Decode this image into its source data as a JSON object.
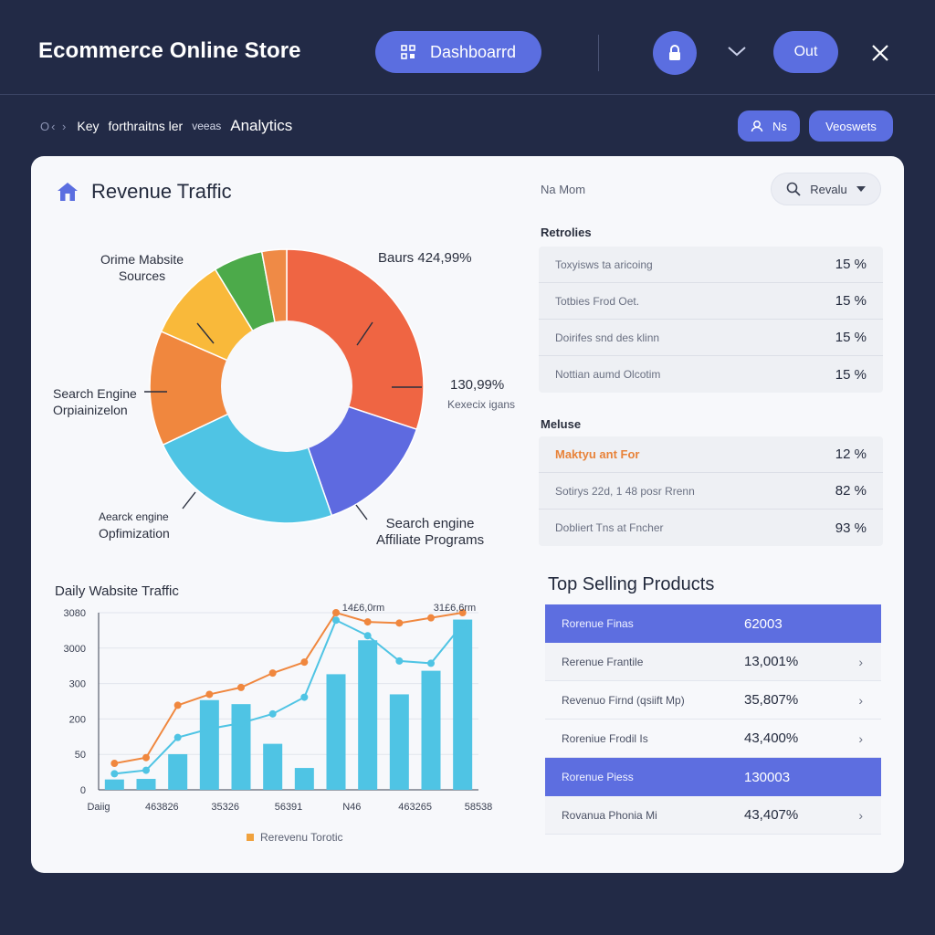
{
  "header": {
    "title": "Ecommerce Online  Store",
    "dashboard_label": "Dashboarrd",
    "out_label": "Out"
  },
  "subbar": {
    "crumb_prefix": "O‹ ›",
    "crumb_key": "Key",
    "crumb_middle": "forthraitns ler",
    "crumb_small": "veeas",
    "crumb_last": "Analytics",
    "ns_label": "Ns",
    "views_label": "Veoswets"
  },
  "card": {
    "title": "Revenue Traffic",
    "name_label": "Na Mom",
    "search_label": "Revalu"
  },
  "pie": {
    "labels": {
      "top_left_1": "Orime Mabsite",
      "top_left_2": "Sources",
      "top_right": "Baurs 424,99%",
      "right_1": "130,99%",
      "right_2": "Kexecix igans",
      "left_1": "Search Engine",
      "left_2": "Orpiainizelon",
      "bottom_left_1": "Aearck engine",
      "bottom_left_2": "Opfimization",
      "bottom_right_1": "Search engine",
      "bottom_right_2": "Affiliate Programs"
    },
    "slices": [
      {
        "value": 31,
        "color": "#ef6543"
      },
      {
        "value": 15,
        "color": "#5e6ae0"
      },
      {
        "value": 24,
        "color": "#4fc4e4"
      },
      {
        "value": 14,
        "color": "#f0873e"
      },
      {
        "value": 10,
        "color": "#f9b93a"
      },
      {
        "value": 6,
        "color": "#4caa4a"
      },
      {
        "value": 3,
        "color": "#ef8a46"
      }
    ]
  },
  "retrotes": {
    "heading": "Retrolies",
    "rows": [
      {
        "label": "Toxyisws ta aricoing",
        "value": "15 %"
      },
      {
        "label": "Totbies Frod Oet.",
        "value": "15 %"
      },
      {
        "label": "Doirifes snd des klinn",
        "value": "15 %"
      },
      {
        "label": "Nottian aumd Olcotim",
        "value": "15 %"
      }
    ]
  },
  "meluse": {
    "heading": "Meluse",
    "rows": [
      {
        "label": "Maktyu ant For",
        "value": "12 %"
      },
      {
        "label": "Sotirys 22d, 1 48 posr Rrenn",
        "value": "82 %"
      },
      {
        "label": "Dobliert Tns at Fncher",
        "value": "93 %"
      }
    ]
  },
  "top_selling": {
    "title": "Top Selling Products",
    "rows": [
      {
        "label": "Rorenue Finas",
        "value": "62003",
        "highlight": true
      },
      {
        "label": "Rerenue Frantile",
        "value": "13,001%",
        "highlight": false
      },
      {
        "label": "Revenuo Firnd (qsiift Mp)",
        "value": "35,807%",
        "highlight": false
      },
      {
        "label": "Roreniue Frodil Is",
        "value": "43,400%",
        "highlight": false
      },
      {
        "label": "Rorenue Piess",
        "value": "130003",
        "highlight": true
      },
      {
        "label": "Rovanua Phonia Mi",
        "value": "43,407%",
        "highlight": false
      }
    ]
  },
  "chart_data": {
    "type": "bar",
    "title": "Daily Wabsite Traffic",
    "xlabel": "",
    "ylabel": "",
    "y_tick_labels": [
      "3080",
      "3000",
      "300",
      "200",
      "50",
      "0"
    ],
    "x_tick_labels": [
      "Daiig",
      "463826",
      "35326",
      "56391",
      "N46",
      "463265",
      "58538"
    ],
    "annotations": [
      "14£6,0rm",
      "31£6,6rm"
    ],
    "legend": "Rerevenu Torotic",
    "ylim": [
      0,
      3080
    ],
    "bar_values": [
      180,
      190,
      620,
      1560,
      1490,
      800,
      380,
      2010,
      2600,
      1660,
      2070,
      2960
    ],
    "series": [
      {
        "name": "",
        "color": "#f0873e",
        "values": [
          460,
          560,
          1470,
          1660,
          1780,
          2030,
          2220,
          3080,
          2920,
          2900,
          2990,
          3080
        ]
      },
      {
        "name": "",
        "color": "#4fc4e4",
        "values": [
          280,
          340,
          910,
          1060,
          1160,
          1320,
          1610,
          2950,
          2680,
          2240,
          2200,
          2880
        ]
      }
    ],
    "bar_color": "#4fc4e4",
    "grid": true
  }
}
